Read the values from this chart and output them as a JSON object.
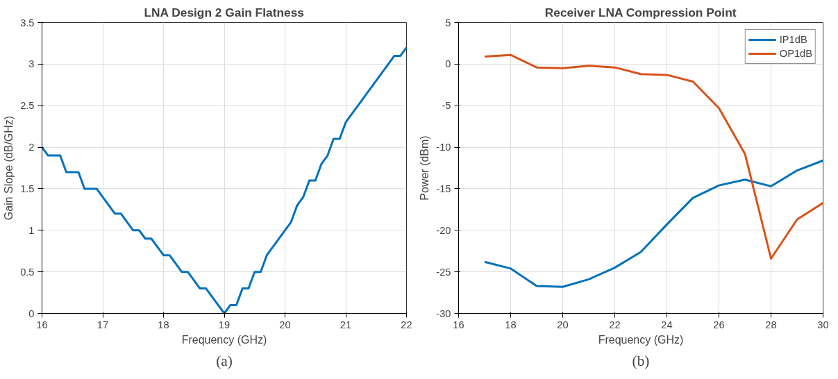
{
  "chart_data": [
    {
      "type": "line",
      "title": "LNA Design 2 Gain Flatness",
      "xlabel": "Frequency (GHz)",
      "ylabel": "Gain Slope (dB/GHz)",
      "annotations": [
        "(a)"
      ],
      "grid": true,
      "xlim": [
        16,
        22
      ],
      "xticks": [
        16,
        17,
        18,
        19,
        20,
        21,
        22
      ],
      "ylim": [
        0,
        3.5
      ],
      "yticks": [
        0,
        0.5,
        1,
        1.5,
        2,
        2.5,
        3,
        3.5
      ],
      "series": [
        {
          "color": "#0072bd",
          "x": [
            16,
            16.1,
            16.3,
            16.4,
            16.6,
            16.7,
            16.9,
            17.2,
            17.3,
            17.5,
            17.6,
            17.7,
            17.8,
            18.0,
            18.1,
            18.3,
            18.4,
            18.6,
            18.7,
            19.0,
            19.1,
            19.2,
            19.3,
            19.4,
            19.5,
            19.6,
            19.7,
            20.1,
            20.2,
            20.3,
            20.4,
            20.5,
            20.6,
            20.7,
            20.8,
            20.9,
            21.0,
            21.8,
            21.9,
            22.0
          ],
          "values": [
            2.0,
            1.9,
            1.9,
            1.7,
            1.7,
            1.5,
            1.5,
            1.2,
            1.2,
            1.0,
            1.0,
            0.9,
            0.9,
            0.7,
            0.7,
            0.5,
            0.5,
            0.3,
            0.3,
            0.0,
            0.1,
            0.1,
            0.3,
            0.3,
            0.5,
            0.5,
            0.7,
            1.1,
            1.3,
            1.4,
            1.6,
            1.6,
            1.8,
            1.9,
            2.1,
            2.1,
            2.3,
            3.1,
            3.1,
            3.2
          ]
        }
      ]
    },
    {
      "type": "line",
      "title": "Receiver LNA Compression Point",
      "xlabel": "Frequency (GHz)",
      "ylabel": "Power (dBm)",
      "annotations": [
        "(b)"
      ],
      "grid": true,
      "legend": "top right",
      "xlim": [
        16,
        30
      ],
      "xticks": [
        16,
        18,
        20,
        22,
        24,
        26,
        28,
        30
      ],
      "ylim": [
        -30,
        5
      ],
      "yticks": [
        -30,
        -25,
        -20,
        -15,
        -10,
        -5,
        0,
        5
      ],
      "x": [
        17,
        18,
        19,
        20,
        21,
        22,
        23,
        24,
        25,
        26,
        27,
        28,
        29,
        30
      ],
      "series": [
        {
          "name": "IP1dB",
          "color": "#0072bd",
          "values": [
            -23.8,
            -24.6,
            -26.7,
            -26.8,
            -25.9,
            -24.5,
            -22.6,
            -19.3,
            -16.1,
            -14.6,
            -13.9,
            -14.7,
            -12.8,
            -11.6
          ]
        },
        {
          "name": "OP1dB",
          "color": "#d95319",
          "values": [
            0.9,
            1.1,
            -0.4,
            -0.5,
            -0.2,
            -0.4,
            -1.2,
            -1.3,
            -2.1,
            -5.3,
            -10.8,
            -23.4,
            -18.7,
            -16.7
          ]
        }
      ]
    }
  ]
}
